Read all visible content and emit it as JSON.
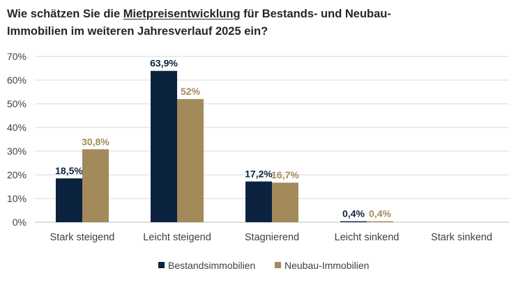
{
  "title": {
    "part1": "Wie schätzen Sie die ",
    "emphasis": "Mietpreisentwicklung",
    "part2": " für Bestands- und Neubau-",
    "line2": "Immobilien im weiteren Jahresverlauf 2025 ein?"
  },
  "colors": {
    "series1": "#0c2340",
    "series2": "#a38a5a",
    "grid": "#d9d9d9",
    "axis_text": "#404040"
  },
  "chart_data": {
    "type": "bar",
    "title": "Wie schätzen Sie die Mietpreisentwicklung für Bestands- und Neubau-Immobilien im weiteren Jahresverlauf 2025 ein?",
    "categories": [
      "Stark steigend",
      "Leicht steigend",
      "Stagnierend",
      "Leicht sinkend",
      "Stark sinkend"
    ],
    "series": [
      {
        "name": "Bestandsimmobilien",
        "values": [
          18.5,
          63.9,
          17.2,
          0.4,
          null
        ],
        "labels": [
          "18,5%",
          "63,9%",
          "17,2%",
          "0,4%",
          ""
        ]
      },
      {
        "name": "Neubau-Immobilien",
        "values": [
          30.8,
          52,
          16.7,
          0.4,
          null
        ],
        "labels": [
          "30,8%",
          "52%",
          "16,7%",
          "0,4%",
          ""
        ]
      }
    ],
    "yticks": [
      0,
      10,
      20,
      30,
      40,
      50,
      60,
      70
    ],
    "ytick_labels": [
      "0%",
      "10%",
      "20%",
      "30%",
      "40%",
      "50%",
      "60%",
      "70%"
    ],
    "ylim": [
      0,
      70
    ],
    "xlabel": "",
    "ylabel": "",
    "grid": true,
    "legend_position": "bottom"
  }
}
